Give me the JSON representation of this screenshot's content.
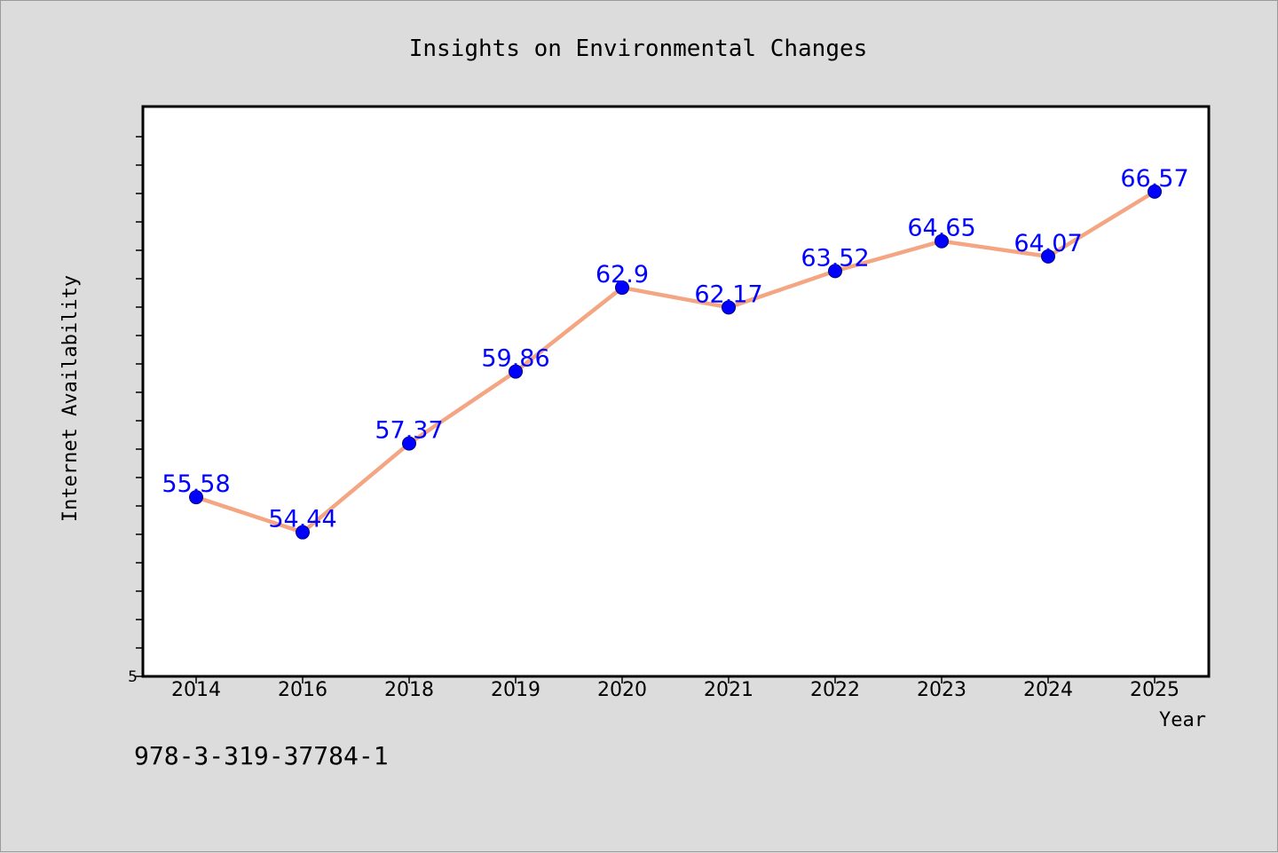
{
  "chart_data": {
    "type": "line",
    "title": "Insights on Environmental Changes",
    "xlabel": "Year",
    "ylabel": "Internet Availability",
    "categories": [
      "2014",
      "2016",
      "2018",
      "2019",
      "2020",
      "2021",
      "2022",
      "2023",
      "2024",
      "2025"
    ],
    "series": [
      {
        "values": [
          55.58,
          54.44,
          57.37,
          59.86,
          62.9,
          62.17,
          63.52,
          64.65,
          64.07,
          66.57
        ],
        "line_color": "#f4a582",
        "marker_color": "#0000ff"
      }
    ],
    "data_label_color": "#0000ff",
    "yscale": "log",
    "ylim": [
      50,
      70
    ],
    "yticks_labeled": [
      "5"
    ],
    "grid": false,
    "legend": "none"
  },
  "footnote": "978-3-319-37784-1"
}
